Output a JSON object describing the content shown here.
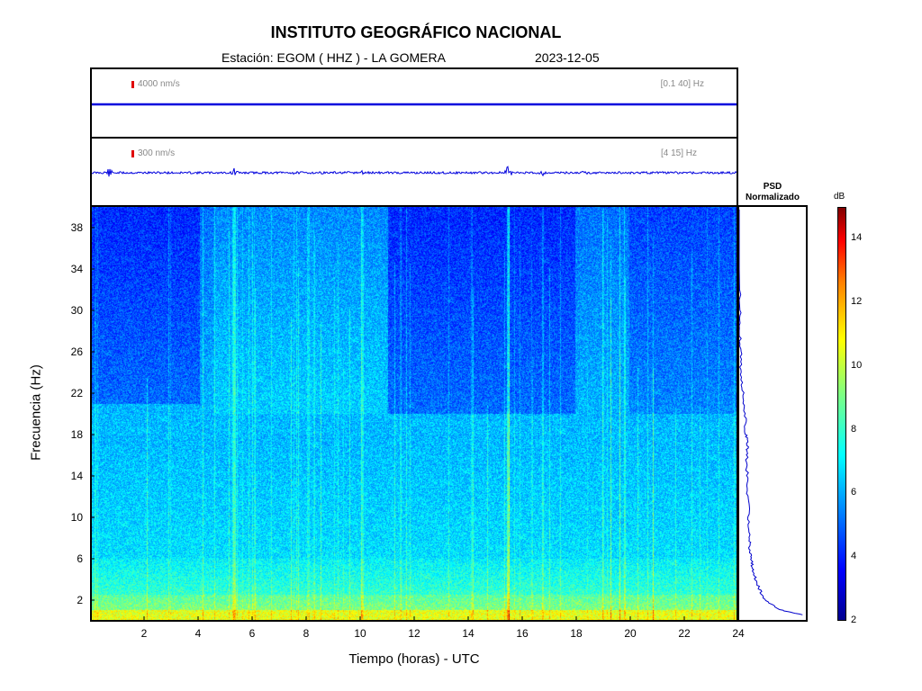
{
  "header": {
    "title": "INSTITUTO GEOGRÁFICO NACIONAL",
    "station_line": "Estación:  EGOM ( HHZ ) - LA GOMERA",
    "date": "2023-12-05"
  },
  "traces": [
    {
      "scale": "4000 nm/s",
      "filter": "[0.1 40] Hz",
      "color": "#0000dd"
    },
    {
      "scale": "300 nm/s",
      "filter": "[4 15] Hz",
      "color": "#0000dd"
    }
  ],
  "psd": {
    "title_line1": "PSD",
    "title_line2": "Normalizado"
  },
  "colorbar": {
    "unit": "dB",
    "ticks": [
      2,
      4,
      6,
      8,
      10,
      12,
      14
    ],
    "range": [
      2,
      15
    ],
    "colors": [
      "#00008f",
      "#0000ff",
      "#0080ff",
      "#00ffff",
      "#80ff80",
      "#ffff00",
      "#ff8000",
      "#ff0000",
      "#800000"
    ]
  },
  "chart_data": {
    "type": "heatmap",
    "xlabel": "Tiempo (horas) - UTC",
    "ylabel": "Frecuencia  (Hz)",
    "xlim": [
      0,
      24
    ],
    "ylim": [
      0,
      40
    ],
    "x_ticks": [
      2,
      4,
      6,
      8,
      10,
      12,
      14,
      16,
      18,
      20,
      22,
      24
    ],
    "y_ticks": [
      2,
      6,
      10,
      14,
      18,
      22,
      26,
      30,
      34,
      38
    ],
    "psd_profile": {
      "frequency_hz": [
        0.5,
        1,
        2,
        3,
        4,
        5,
        6,
        7,
        8,
        10,
        12,
        14,
        16,
        17,
        18,
        20,
        22,
        24,
        26,
        28,
        30,
        34,
        38,
        40
      ],
      "normalized": [
        0.95,
        0.6,
        0.38,
        0.3,
        0.24,
        0.2,
        0.18,
        0.16,
        0.15,
        0.14,
        0.13,
        0.12,
        0.11,
        0.13,
        0.1,
        0.09,
        0.06,
        0.03,
        0.02,
        0.01,
        0.01,
        0.0,
        0.0,
        0.0
      ]
    }
  }
}
